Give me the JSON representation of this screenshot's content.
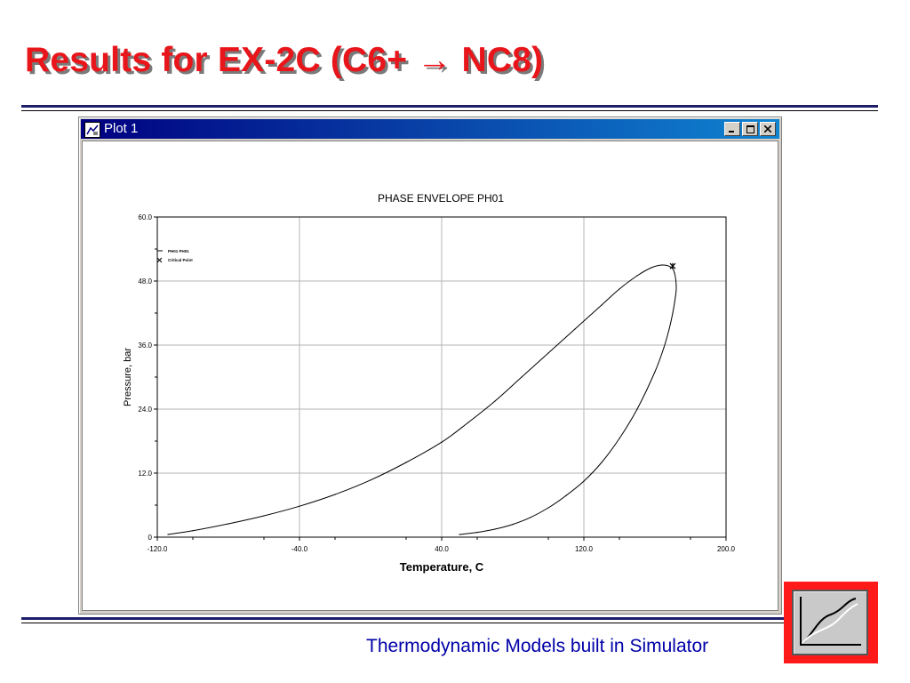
{
  "slide": {
    "title": "Results for EX-2C (C6+ → NC8)",
    "footer": "Thermodynamic Models built in Simulator",
    "logo_icon": "curve-graph-icon"
  },
  "window": {
    "title": "Plot 1",
    "buttons": [
      "minimize",
      "maximize",
      "close"
    ],
    "titlebar_colors": [
      "#000080",
      "#1084d0"
    ]
  },
  "chart_data": {
    "type": "line",
    "title": "PHASE ENVELOPE PH01",
    "xlabel": "Temperature, C",
    "ylabel": "Pressure, bar",
    "xlim": [
      -120,
      200
    ],
    "ylim": [
      0,
      60
    ],
    "x_ticks": [
      "-120.0",
      "-40.0",
      "40.0",
      "120.0",
      "200.0"
    ],
    "y_ticks": [
      "0",
      "12.0",
      "24.0",
      "36.0",
      "48.0",
      "60.0"
    ],
    "grid": true,
    "legend_position": "top-left",
    "legend": [
      "PH01 PH01",
      "Critical Point"
    ],
    "series": [
      {
        "name": "PH01 PH01",
        "color": "#000000",
        "x": [
          -114,
          -100,
          -80,
          -60,
          -40,
          -20,
          0,
          20,
          40,
          55,
          70,
          85,
          100,
          115,
          130,
          140,
          150,
          158,
          164,
          169,
          171,
          172,
          171.5,
          170,
          168,
          165,
          160,
          150,
          140,
          130,
          120,
          110,
          100,
          90,
          80,
          70,
          60,
          50
        ],
        "y": [
          0.5,
          1.2,
          2.5,
          4.0,
          5.8,
          8.0,
          10.7,
          14.0,
          17.8,
          21.5,
          25.5,
          30.0,
          34.5,
          39.0,
          43.5,
          46.5,
          49.0,
          50.5,
          51.0,
          50.6,
          49.5,
          47.0,
          45.0,
          42.0,
          39.0,
          35.5,
          31.0,
          24.0,
          18.5,
          14.0,
          10.5,
          7.8,
          5.5,
          3.7,
          2.4,
          1.5,
          0.9,
          0.5
        ]
      }
    ],
    "critical_point": {
      "name": "Critical Point",
      "x": 170,
      "y": 50.8
    }
  }
}
